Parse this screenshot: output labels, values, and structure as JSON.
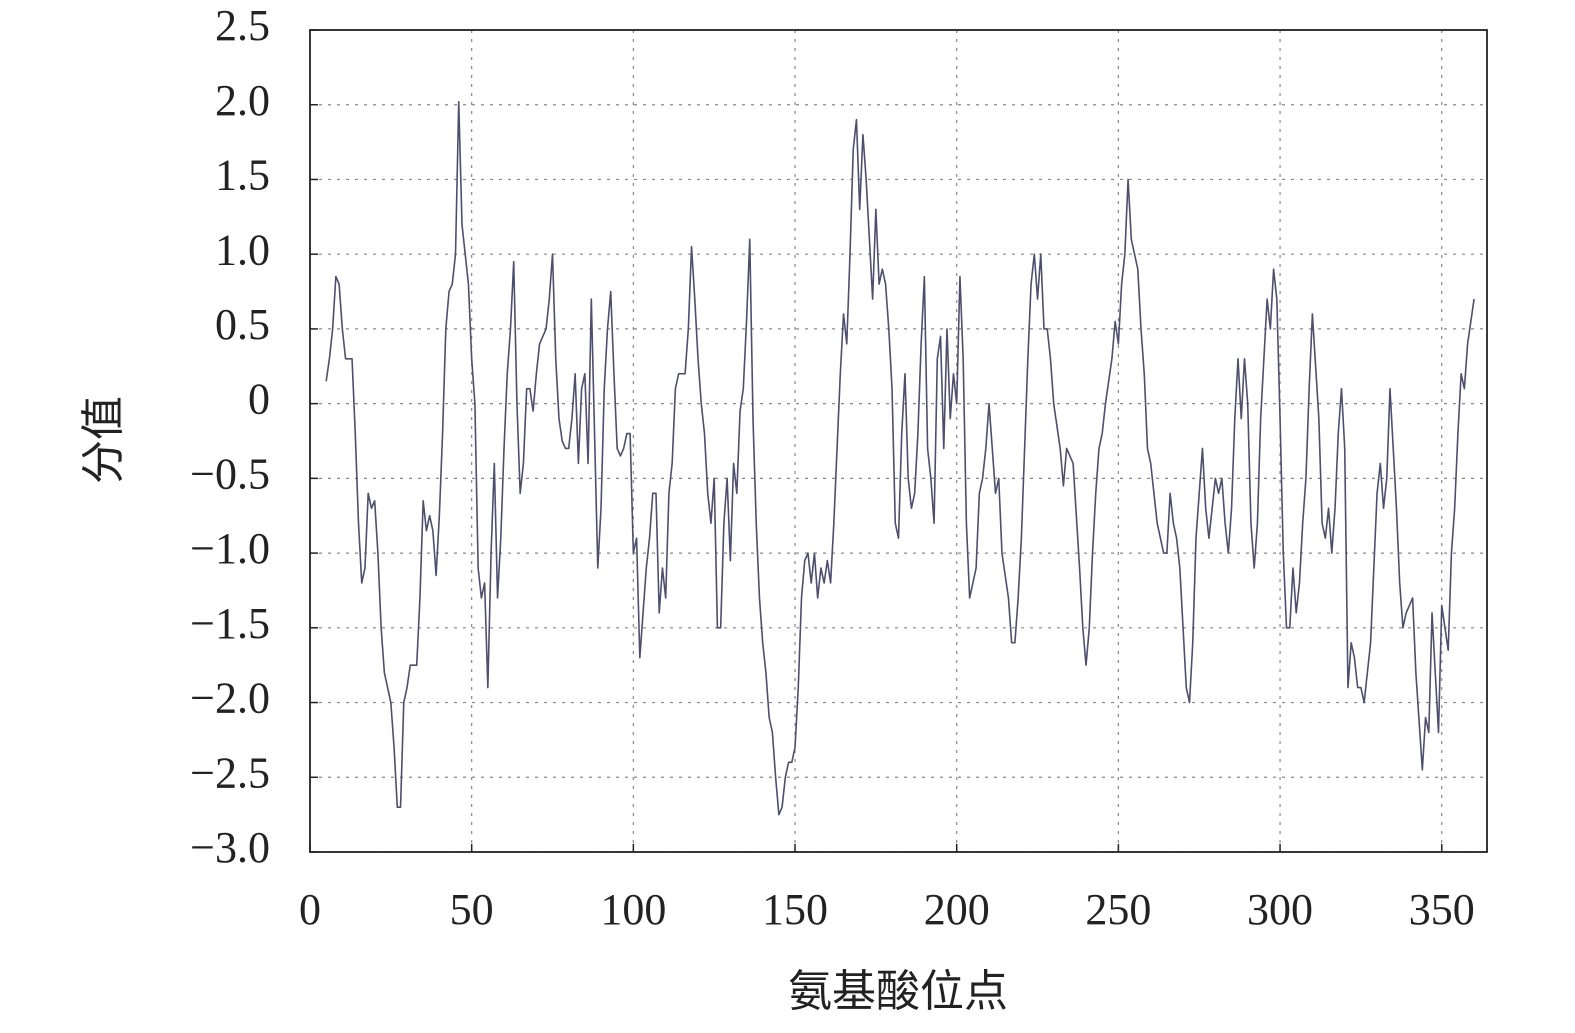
{
  "chart_data": {
    "type": "line",
    "x_label": "氨基酸位点",
    "y_label": "分值",
    "xlim": [
      0,
      364
    ],
    "ylim": [
      -3,
      2.5
    ],
    "xticks": [
      0,
      50,
      100,
      150,
      200,
      250,
      300,
      350
    ],
    "yticks": [
      2.5,
      {
        "value": 2,
        "label": "2.0"
      },
      1.5,
      {
        "value": 1,
        "label": "1.0"
      },
      0.5,
      0,
      {
        "value": -0.5,
        "label": "−0.5"
      },
      {
        "value": -1,
        "label": "−1.0"
      },
      {
        "value": -1.5,
        "label": "−1.5"
      },
      {
        "value": -2,
        "label": "−2.0"
      },
      {
        "value": -2.5,
        "label": "−2.5"
      },
      {
        "value": -3,
        "label": "−3.0"
      }
    ],
    "grid": true,
    "color": "#4e4e6e",
    "x": [
      5,
      6,
      7,
      8,
      9,
      10,
      11,
      12,
      13,
      14,
      15,
      16,
      17,
      18,
      19,
      20,
      21,
      22,
      23,
      24,
      25,
      26,
      27,
      28,
      29,
      30,
      31,
      32,
      33,
      34,
      35,
      36,
      37,
      38,
      39,
      40,
      41,
      42,
      43,
      44,
      45,
      46,
      47,
      48,
      49,
      50,
      51,
      52,
      53,
      54,
      55,
      56,
      57,
      58,
      59,
      60,
      61,
      62,
      63,
      64,
      65,
      66,
      67,
      68,
      69,
      70,
      71,
      72,
      73,
      74,
      75,
      76,
      77,
      78,
      79,
      80,
      81,
      82,
      83,
      84,
      85,
      86,
      87,
      88,
      89,
      90,
      91,
      92,
      93,
      94,
      95,
      96,
      97,
      98,
      99,
      100,
      101,
      102,
      103,
      104,
      105,
      106,
      107,
      108,
      109,
      110,
      111,
      112,
      113,
      114,
      115,
      116,
      117,
      118,
      119,
      120,
      121,
      122,
      123,
      124,
      125,
      126,
      127,
      128,
      129,
      130,
      131,
      132,
      133,
      134,
      135,
      136,
      137,
      138,
      139,
      140,
      141,
      142,
      143,
      144,
      145,
      146,
      147,
      148,
      149,
      150,
      151,
      152,
      153,
      154,
      155,
      156,
      157,
      158,
      159,
      160,
      161,
      162,
      163,
      164,
      165,
      166,
      167,
      168,
      169,
      170,
      171,
      172,
      173,
      174,
      175,
      176,
      177,
      178,
      179,
      180,
      181,
      182,
      183,
      184,
      185,
      186,
      187,
      188,
      189,
      190,
      191,
      192,
      193,
      194,
      195,
      196,
      197,
      198,
      199,
      200,
      201,
      202,
      203,
      204,
      205,
      206,
      207,
      208,
      209,
      210,
      211,
      212,
      213,
      214,
      216,
      217,
      218,
      219,
      220,
      221,
      222,
      223,
      224,
      225,
      226,
      227,
      228,
      229,
      230,
      232,
      233,
      234,
      235,
      236,
      237,
      238,
      239,
      240,
      241,
      242,
      243,
      244,
      245,
      246,
      248,
      249,
      250,
      251,
      252,
      253,
      254,
      255,
      256,
      257,
      258,
      259,
      260,
      261,
      262,
      264,
      265,
      266,
      267,
      268,
      269,
      270,
      271,
      272,
      273,
      274,
      275,
      276,
      277,
      278,
      280,
      281,
      282,
      283,
      284,
      285,
      286,
      287,
      288,
      289,
      290,
      291,
      292,
      293,
      294,
      296,
      297,
      298,
      299,
      300,
      301,
      302,
      303,
      304,
      305,
      306,
      307,
      308,
      309,
      310,
      312,
      313,
      314,
      315,
      316,
      317,
      318,
      319,
      320,
      321,
      322,
      323,
      324,
      325,
      326,
      328,
      329,
      330,
      331,
      332,
      333,
      334,
      335,
      336,
      337,
      338,
      339,
      340,
      341,
      342,
      344,
      345,
      346,
      347,
      348,
      349,
      350,
      351,
      352,
      353,
      354,
      355,
      356,
      357,
      358,
      360
    ],
    "values": [
      0.15,
      0.3,
      0.5,
      0.85,
      0.8,
      0.5,
      0.3,
      0.3,
      0.3,
      -0.2,
      -0.8,
      -1.2,
      -1.1,
      -0.6,
      -0.7,
      -0.65,
      -1.0,
      -1.5,
      -1.8,
      -1.9,
      -2.0,
      -2.3,
      -2.7,
      -2.7,
      -2.0,
      -1.9,
      -1.75,
      -1.75,
      -1.75,
      -1.3,
      -0.65,
      -0.85,
      -0.75,
      -0.85,
      -1.15,
      -0.75,
      -0.2,
      0.5,
      0.75,
      0.8,
      1.0,
      2.02,
      1.2,
      1.0,
      0.8,
      0.3,
      0.0,
      -1.1,
      -1.3,
      -1.2,
      -1.9,
      -1.0,
      -0.4,
      -1.3,
      -0.9,
      -0.3,
      0.2,
      0.5,
      0.95,
      0.0,
      -0.6,
      -0.4,
      0.1,
      0.1,
      -0.05,
      0.2,
      0.4,
      0.45,
      0.5,
      0.7,
      1.0,
      0.3,
      -0.1,
      -0.25,
      -0.3,
      -0.3,
      -0.1,
      0.2,
      -0.4,
      0.1,
      0.2,
      -0.4,
      0.7,
      -0.2,
      -1.1,
      -0.7,
      0.1,
      0.5,
      0.75,
      0.2,
      -0.3,
      -0.35,
      -0.3,
      -0.2,
      -0.2,
      -1.0,
      -0.9,
      -1.7,
      -1.4,
      -1.1,
      -0.9,
      -0.6,
      -0.6,
      -1.4,
      -1.1,
      -1.3,
      -0.6,
      -0.4,
      0.1,
      0.2,
      0.2,
      0.2,
      0.5,
      1.05,
      0.7,
      0.3,
      0.0,
      -0.2,
      -0.6,
      -0.8,
      -0.5,
      -1.5,
      -1.5,
      -0.8,
      -0.5,
      -1.05,
      -0.4,
      -0.6,
      -0.05,
      0.1,
      0.55,
      1.1,
      -0.1,
      -0.8,
      -1.3,
      -1.6,
      -1.8,
      -2.1,
      -2.2,
      -2.5,
      -2.75,
      -2.7,
      -2.5,
      -2.4,
      -2.4,
      -2.3,
      -1.9,
      -1.3,
      -1.05,
      -1.0,
      -1.2,
      -1.0,
      -1.3,
      -1.1,
      -1.2,
      -1.05,
      -1.2,
      -0.8,
      -0.3,
      0.2,
      0.6,
      0.4,
      1.0,
      1.7,
      1.9,
      1.3,
      1.8,
      1.5,
      1.1,
      0.7,
      1.3,
      0.8,
      0.9,
      0.8,
      0.5,
      0.1,
      -0.8,
      -0.9,
      -0.2,
      0.2,
      -0.5,
      -0.7,
      -0.6,
      -0.2,
      0.4,
      0.85,
      -0.3,
      -0.5,
      -0.8,
      0.3,
      0.45,
      -0.3,
      0.5,
      -0.1,
      0.2,
      0.0,
      0.85,
      0.3,
      -0.8,
      -1.3,
      -1.2,
      -1.1,
      -0.6,
      -0.5,
      -0.3,
      0.0,
      -0.3,
      -0.6,
      -0.5,
      -1.0,
      -1.3,
      -1.6,
      -1.6,
      -1.3,
      -0.9,
      -0.3,
      0.3,
      0.8,
      1.0,
      0.7,
      1.0,
      0.5,
      0.5,
      0.3,
      0.0,
      -0.3,
      -0.55,
      -0.3,
      -0.35,
      -0.4,
      -0.75,
      -1.1,
      -1.5,
      -1.75,
      -1.5,
      -1.0,
      -0.6,
      -0.3,
      -0.2,
      0.0,
      0.3,
      0.55,
      0.4,
      0.8,
      1.0,
      1.5,
      1.1,
      1.0,
      0.9,
      0.5,
      0.2,
      -0.3,
      -0.4,
      -0.6,
      -0.8,
      -1.0,
      -1.0,
      -0.6,
      -0.8,
      -0.9,
      -1.1,
      -1.5,
      -1.9,
      -2.0,
      -1.6,
      -0.9,
      -0.6,
      -0.3,
      -0.7,
      -0.9,
      -0.5,
      -0.6,
      -0.5,
      -0.8,
      -1.0,
      -0.7,
      -0.1,
      0.3,
      -0.1,
      0.3,
      0.0,
      -0.8,
      -1.1,
      -0.8,
      -0.1,
      0.7,
      0.5,
      0.9,
      0.7,
      -0.1,
      -1.0,
      -1.5,
      -1.5,
      -1.1,
      -1.4,
      -1.2,
      -0.8,
      -0.5,
      0.1,
      0.6,
      -0.1,
      -0.8,
      -0.9,
      -0.7,
      -1.0,
      -0.7,
      -0.2,
      0.1,
      -0.3,
      -1.9,
      -1.6,
      -1.7,
      -1.9,
      -1.9,
      -2.0,
      -1.6,
      -1.1,
      -0.6,
      -0.4,
      -0.7,
      -0.5,
      0.1,
      -0.3,
      -0.7,
      -1.2,
      -1.5,
      -1.4,
      -1.35,
      -1.3,
      -1.8,
      -2.45,
      -2.1,
      -2.2,
      -1.4,
      -1.8,
      -2.2,
      -1.35,
      -1.5,
      -1.65,
      -1.0,
      -0.7,
      -0.2,
      0.2,
      0.1,
      0.4,
      0.7
    ]
  }
}
